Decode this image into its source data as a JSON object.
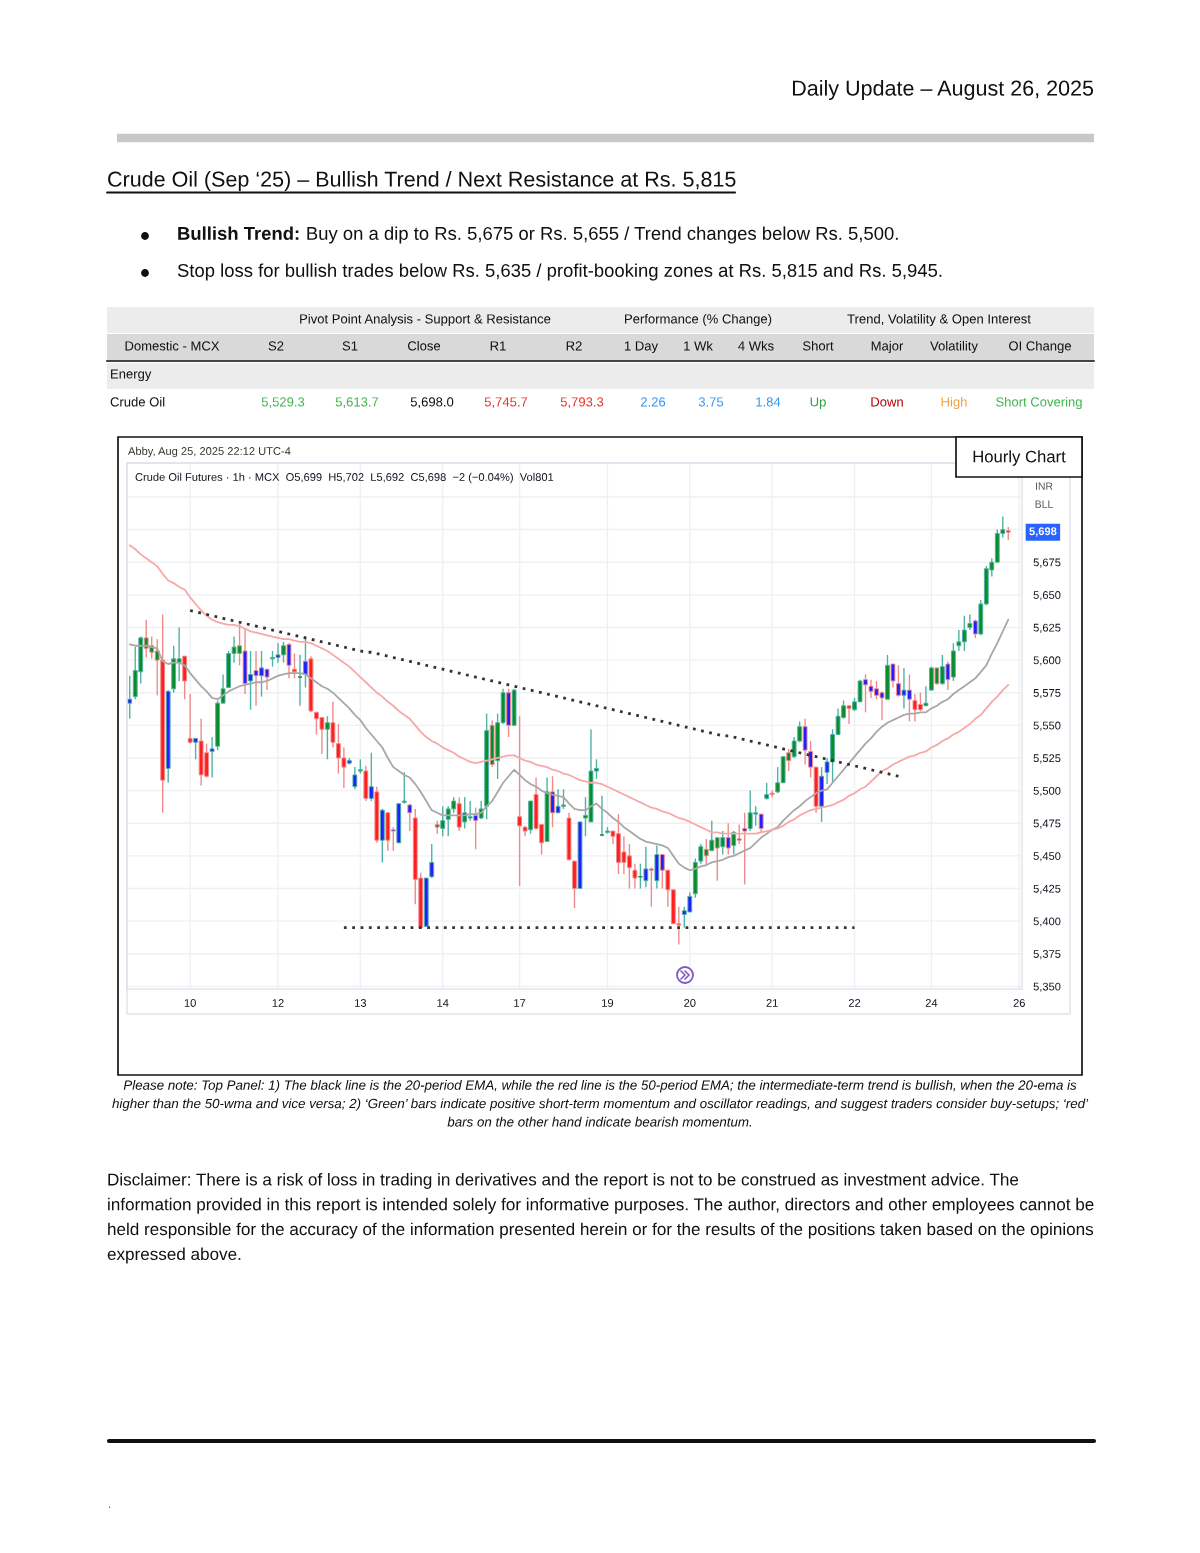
{
  "chart_data": [
    {
      "type": "other",
      "title": "Daily Update – August 26, 2025",
      "subtitle": "Crude Oil (Sep ‘25) – Bullish Trend / Next Resistance at Rs. 5,815",
      "annotations": [
        "Bullish Trend:",
        "Buy on a dip to Rs. 5,675 or Rs. 5,655 / Trend changes below Rs. 5,500.",
        "Stop loss for bullish trades below Rs. 5,635 / profit-booking zones at Rs. 5,815 and Rs. 5,945.",
        "Pivot Point Analysis - Support & Resistance",
        "Performance (% Change)",
        "Trend, Volatility & Open Interest",
        "Energy",
        "Crude Oil",
        "5,529.3",
        "5,613.7",
        "5,698.0",
        "5,745.7",
        "5,793.3",
        "2.26",
        "3.75",
        "1.84",
        "Up",
        "Down",
        "High",
        "Short Covering"
      ],
      "categories": [
        "Domestic - MCX",
        "S2",
        "S1",
        "Close",
        "R1",
        "R2",
        "1 Day",
        "1 Wk",
        "4 Wks",
        "Short",
        "Major",
        "Volatility",
        "OI Change"
      ]
    },
    {
      "type": "candlestick",
      "title": "Hourly Chart",
      "subtitle": "Crude Oil Futures · 1h · MCX  O5,699  H5,702  L5,692  C5,698  −2 (−0.04%)  Vol801",
      "annotations": [
        "Abby, Aug 25, 2025 22:12 UTC-4",
        "5,698",
        "INR",
        "BLL",
        "Please note: Top Panel: 1) The black line is the 20-period EMA, while the red line is the 50-period EMA; the intermediate-term trend is bullish, when the 20-ema is higher than the 50-wma and vice versa; 2) ‘Green’ bars indicate positive short-term momentum and oscillator readings, and suggest traders consider buy-setups; ‘red’ bars on the other hand indicate bearish momentum.",
        "Disclaimer: There is a risk of loss in trading in derivatives and the report is not to be construed as investment advice. The information provided in this report is intended solely for informative purposes. The author, directors and other employees cannot be held responsible for the accuracy of the information presented herein or for the results of the positions taken based on the opinions expressed above.",
        "."
      ],
      "categories": [
        null,
        null,
        null,
        null,
        null,
        null,
        null,
        null,
        null,
        null,
        null,
        "10",
        null,
        null,
        null,
        null,
        null,
        null,
        null,
        null,
        null,
        null,
        null,
        null,
        null,
        null,
        null,
        "12",
        null,
        null,
        null,
        null,
        null,
        null,
        null,
        null,
        null,
        null,
        null,
        null,
        null,
        null,
        "13",
        null,
        null,
        null,
        null,
        null,
        null,
        null,
        null,
        null,
        null,
        null,
        null,
        null,
        null,
        "14",
        null,
        null,
        null,
        null,
        null,
        null,
        null,
        null,
        null,
        null,
        null,
        null,
        null,
        "17",
        null,
        null,
        null,
        null,
        null,
        null,
        null,
        null,
        null,
        null,
        null,
        null,
        null,
        null,
        null,
        "19",
        null,
        null,
        null,
        null,
        null,
        null,
        null,
        null,
        null,
        null,
        null,
        null,
        null,
        null,
        "20",
        null,
        null,
        null,
        null,
        null,
        null,
        null,
        null,
        null,
        null,
        null,
        null,
        null,
        null,
        "21",
        null,
        null,
        null,
        null,
        null,
        null,
        null,
        null,
        null,
        null,
        null,
        null,
        null,
        null,
        "22",
        null,
        null,
        null,
        null,
        null,
        null,
        null,
        null,
        null,
        null,
        null,
        null,
        null,
        "24",
        null,
        null,
        null,
        null,
        null,
        null,
        null,
        null,
        null,
        null,
        null,
        null,
        null,
        null,
        null,
        "26"
      ],
      "ohlc": [
        [
          5567,
          5588,
          5555,
          5570
        ],
        [
          5572,
          5610,
          5570,
          5592
        ],
        [
          5591,
          5618,
          5582,
          5617
        ],
        [
          5617,
          5631,
          5602,
          5609
        ],
        [
          5611,
          5618,
          5601,
          5606
        ],
        [
          5607,
          5616,
          5573,
          5600
        ],
        [
          5600,
          5635,
          5483,
          5508
        ],
        [
          5517,
          5577,
          5506,
          5576
        ],
        [
          5578,
          5611,
          5575,
          5601
        ],
        [
          5598,
          5625,
          5584,
          5601
        ],
        [
          5603,
          5603,
          5570,
          5584
        ],
        [
          5540,
          5574,
          5536,
          5537
        ],
        [
          5537,
          5540,
          5524,
          5540
        ],
        [
          5538,
          5555,
          5504,
          5512
        ],
        [
          5529,
          5536,
          5510,
          5511
        ],
        [
          5530,
          5541,
          5510,
          5532
        ],
        [
          5534,
          5569,
          5531,
          5567
        ],
        [
          5567,
          5589,
          5567,
          5578
        ],
        [
          5579,
          5607,
          5579,
          5605
        ],
        [
          5605,
          5618,
          5598,
          5610
        ],
        [
          5611,
          5628,
          5596,
          5605
        ],
        [
          5607,
          5624,
          5574,
          5582
        ],
        [
          5584,
          5607,
          5562,
          5589
        ],
        [
          5592,
          5607,
          5565,
          5588
        ],
        [
          5588,
          5607,
          5572,
          5594
        ],
        [
          5593,
          5593,
          5577,
          5587
        ],
        [
          5601,
          5607,
          5595,
          5602
        ],
        [
          5602,
          5613,
          5598,
          5604
        ],
        [
          5604,
          5614,
          5598,
          5611
        ],
        [
          5612,
          5613,
          5586,
          5596
        ],
        [
          5593,
          5605,
          5586,
          5591
        ],
        [
          5587,
          5604,
          5565,
          5587
        ],
        [
          5589,
          5618,
          5579,
          5599
        ],
        [
          5601,
          5603,
          5560,
          5561
        ],
        [
          5560,
          5560,
          5543,
          5555
        ],
        [
          5556,
          5556,
          5528,
          5547
        ],
        [
          5547,
          5557,
          5524,
          5552
        ],
        [
          5552,
          5568,
          5533,
          5537
        ],
        [
          5536,
          5551,
          5513,
          5525
        ],
        [
          5525,
          5533,
          5502,
          5518
        ],
        [
          5521,
          5525,
          5520,
          5523
        ],
        [
          5503,
          5518,
          5501,
          5512
        ],
        [
          5515,
          5524,
          5513,
          5516
        ],
        [
          5515,
          5519,
          5492,
          5494
        ],
        [
          5494,
          5529,
          5492,
          5503
        ],
        [
          5499,
          5503,
          5460,
          5462
        ],
        [
          5462,
          5486,
          5445,
          5485
        ],
        [
          5483,
          5483,
          5454,
          5462
        ],
        [
          5470,
          5472,
          5454,
          5469
        ],
        [
          5460,
          5490,
          5460,
          5490
        ],
        [
          5491,
          5514,
          5490,
          5492
        ],
        [
          5489,
          5490,
          5469,
          5483
        ],
        [
          5479,
          5486,
          5413,
          5432
        ],
        [
          5433,
          5437,
          5395,
          5395
        ],
        [
          5396,
          5433,
          5396,
          5433
        ],
        [
          5434,
          5459,
          5433,
          5445
        ],
        [
          5474,
          5477,
          5467,
          5472
        ],
        [
          5471,
          5488,
          5465,
          5477
        ],
        [
          5478,
          5488,
          5465,
          5486
        ],
        [
          5486,
          5495,
          5483,
          5492
        ],
        [
          5490,
          5495,
          5469,
          5472
        ],
        [
          5476,
          5495,
          5471,
          5483
        ],
        [
          5479,
          5492,
          5477,
          5480
        ],
        [
          5481,
          5487,
          5455,
          5477
        ],
        [
          5479,
          5492,
          5478,
          5486
        ],
        [
          5488,
          5559,
          5478,
          5546
        ],
        [
          5550,
          5554,
          5518,
          5520
        ],
        [
          5523,
          5559,
          5509,
          5552
        ],
        [
          5552,
          5578,
          5551,
          5575
        ],
        [
          5575,
          5578,
          5541,
          5550
        ],
        [
          5550,
          5578,
          5550,
          5577
        ],
        [
          5480,
          5557,
          5427,
          5473
        ],
        [
          5472,
          5473,
          5465,
          5469
        ],
        [
          5470,
          5492,
          5467,
          5492
        ],
        [
          5497,
          5510,
          5470,
          5471
        ],
        [
          5474,
          5474,
          5451,
          5460
        ],
        [
          5461,
          5510,
          5461,
          5499
        ],
        [
          5499,
          5511,
          5472,
          5483
        ],
        [
          5483,
          5501,
          5483,
          5488
        ],
        [
          5488,
          5501,
          5486,
          5489
        ],
        [
          5479,
          5483,
          5447,
          5447
        ],
        [
          5446,
          5446,
          5410,
          5425
        ],
        [
          5425,
          5476,
          5425,
          5476
        ],
        [
          5479,
          5495,
          5465,
          5481
        ],
        [
          5476,
          5547,
          5476,
          5515
        ],
        [
          5515,
          5524,
          5509,
          5517
        ],
        [
          5466,
          5496,
          5465,
          5466
        ],
        [
          5468,
          5472,
          5467,
          5469
        ],
        [
          5469,
          5469,
          5459,
          5465
        ],
        [
          5467,
          5482,
          5436,
          5445
        ],
        [
          5453,
          5465,
          5436,
          5445
        ],
        [
          5450,
          5459,
          5425,
          5441
        ],
        [
          5439,
          5444,
          5425,
          5433
        ],
        [
          5434,
          5444,
          5425,
          5434
        ],
        [
          5431,
          5457,
          5426,
          5440
        ],
        [
          5440,
          5441,
          5411,
          5439
        ],
        [
          5431,
          5458,
          5425,
          5451
        ],
        [
          5451,
          5451,
          5425,
          5439
        ],
        [
          5439,
          5439,
          5411,
          5424
        ],
        [
          5424,
          5424,
          5398,
          5398
        ],
        [
          5398,
          5411,
          5382,
          5397
        ],
        [
          5405,
          5411,
          5395,
          5408
        ],
        [
          5407,
          5422,
          5407,
          5419
        ],
        [
          5421,
          5448,
          5418,
          5445
        ],
        [
          5446,
          5459,
          5444,
          5457
        ],
        [
          5455,
          5463,
          5442,
          5450
        ],
        [
          5454,
          5477,
          5454,
          5462
        ],
        [
          5464,
          5464,
          5431,
          5456
        ],
        [
          5457,
          5469,
          5451,
          5464
        ],
        [
          5464,
          5475,
          5451,
          5456
        ],
        [
          5458,
          5469,
          5451,
          5468
        ],
        [
          5463,
          5474,
          5459,
          5462
        ],
        [
          5471,
          5483,
          5428,
          5469
        ],
        [
          5471,
          5500,
          5469,
          5483
        ],
        [
          5482,
          5488,
          5473,
          5483
        ],
        [
          5482,
          5482,
          5468,
          5471
        ],
        [
          5494,
          5506,
          5493,
          5497
        ],
        [
          5498,
          5500,
          5495,
          5497
        ],
        [
          5499,
          5518,
          5498,
          5506
        ],
        [
          5506,
          5526,
          5506,
          5526
        ],
        [
          5529,
          5532,
          5515,
          5523
        ],
        [
          5526,
          5541,
          5525,
          5538
        ],
        [
          5538,
          5553,
          5537,
          5549
        ],
        [
          5549,
          5555,
          5520,
          5531
        ],
        [
          5530,
          5538,
          5510,
          5518
        ],
        [
          5518,
          5518,
          5483,
          5488
        ],
        [
          5488,
          5518,
          5476,
          5511
        ],
        [
          5514,
          5525,
          5505,
          5522
        ],
        [
          5522,
          5547,
          5506,
          5543
        ],
        [
          5543,
          5563,
          5543,
          5557
        ],
        [
          5556,
          5569,
          5555,
          5565
        ],
        [
          5565,
          5565,
          5551,
          5563
        ],
        [
          5562,
          5571,
          5561,
          5568
        ],
        [
          5568,
          5585,
          5568,
          5584
        ],
        [
          5585,
          5589,
          5560,
          5581
        ],
        [
          5580,
          5585,
          5571,
          5576
        ],
        [
          5578,
          5584,
          5570,
          5573
        ],
        [
          5575,
          5576,
          5554,
          5571
        ],
        [
          5570,
          5604,
          5570,
          5596
        ],
        [
          5597,
          5597,
          5579,
          5584
        ],
        [
          5582,
          5596,
          5572,
          5573
        ],
        [
          5573,
          5594,
          5563,
          5577
        ],
        [
          5577,
          5589,
          5553,
          5570
        ],
        [
          5569,
          5574,
          5553,
          5562
        ],
        [
          5566,
          5575,
          5561,
          5562
        ],
        [
          5565,
          5580,
          5565,
          5567
        ],
        [
          5577,
          5595,
          5577,
          5594
        ],
        [
          5594,
          5594,
          5581,
          5582
        ],
        [
          5582,
          5604,
          5581,
          5595
        ],
        [
          5597,
          5599,
          5577,
          5585
        ],
        [
          5587,
          5613,
          5584,
          5607
        ],
        [
          5611,
          5623,
          5607,
          5614
        ],
        [
          5614,
          5634,
          5607,
          5623
        ],
        [
          5625,
          5635,
          5623,
          5628
        ],
        [
          5630,
          5631,
          5617,
          5620
        ],
        [
          5620,
          5646,
          5619,
          5643
        ],
        [
          5643,
          5672,
          5642,
          5670
        ],
        [
          5669,
          5678,
          5664,
          5675
        ],
        [
          5675,
          5700,
          5675,
          5697
        ],
        [
          5697,
          5710,
          5694,
          5700
        ],
        [
          5699,
          5702,
          5692,
          5698
        ],
        null,
        null
      ],
      "colors": [
        "#1f1fff",
        "#0b8c2b",
        "#0b8c2b",
        "#0b8c2b",
        "#0b8c2b",
        "#0b8c2b",
        "#ff1f1f",
        "#1f1fff",
        "#0b8c2b",
        "#0b8c2b",
        "#ff1f1f",
        "#ff1f1f",
        "#1f1fff",
        "#ff1f1f",
        "#ff1f1f",
        "#1f1fff",
        "#0b8c2b",
        "#0b8c2b",
        "#0b8c2b",
        "#0b8c2b",
        "#0b8c2b",
        "#1f1fff",
        "#1f1fff",
        "#1f1fff",
        "#1f1fff",
        "#1f1fff",
        "#0b8c2b",
        "#1f1fff",
        "#0b8c2b",
        "#1f1fff",
        "#ff1f1f",
        "#0b8c2b",
        "#1f1fff",
        "#ff1f1f",
        "#ff1f1f",
        "#ff1f1f",
        "#0b8c2b",
        "#ff1f1f",
        "#ff1f1f",
        "#ff1f1f",
        "#1f1fff",
        "#1f1fff",
        "#0b8c2b",
        "#ff1f1f",
        "#1f1fff",
        "#ff1f1f",
        "#1f1fff",
        "#ff1f1f",
        "#1f1fff",
        "#1f1fff",
        "#0b8c2b",
        "#1f1fff",
        "#ff1f1f",
        "#ff1f1f",
        "#1f1fff",
        "#1f1fff",
        "#0b8c2b",
        "#0b8c2b",
        "#0b8c2b",
        "#0b8c2b",
        "#ff1f1f",
        "#0b8c2b",
        "#0b8c2b",
        "#1f1fff",
        "#0b8c2b",
        "#0b8c2b",
        "#0b8c2b",
        "#0b8c2b",
        "#0b8c2b",
        "#1f1fff",
        "#0b8c2b",
        "#ff1f1f",
        "#ff1f1f",
        "#0b8c2b",
        "#ff1f1f",
        "#ff1f1f",
        "#0b8c2b",
        "#1f1fff",
        "#1f1fff",
        "#0b8c2b",
        "#ff1f1f",
        "#ff1f1f",
        "#1f1fff",
        "#0b8c2b",
        "#0b8c2b",
        "#0b8c2b",
        "#0b8c2b",
        "#0b8c2b",
        "#ff1f1f",
        "#ff1f1f",
        "#ff1f1f",
        "#ff1f1f",
        "#ff1f1f",
        "#0b8c2b",
        "#1f1fff",
        "#ff1f1f",
        "#1f1fff",
        "#1f1fff",
        "#ff1f1f",
        "#ff1f1f",
        "#ff1f1f",
        "#1f1fff",
        "#1f1fff",
        "#0b8c2b",
        "#0b8c2b",
        "#0b8c2b",
        "#0b8c2b",
        "#0b8c2b",
        "#0b8c2b",
        "#1f1fff",
        "#0b8c2b",
        "#1f1fff",
        "#1f1fff",
        "#0b8c2b",
        "#0b8c2b",
        "#1f1fff",
        "#0b8c2b",
        "#ff1f1f",
        "#0b8c2b",
        "#0b8c2b",
        "#0b8c2b",
        "#0b8c2b",
        "#0b8c2b",
        "#1f1fff",
        "#1f1fff",
        "#ff1f1f",
        "#1f1fff",
        "#1f1fff",
        "#0b8c2b",
        "#0b8c2b",
        "#0b8c2b",
        "#ff1f1f",
        "#0b8c2b",
        "#0b8c2b",
        "#1f1fff",
        "#1f1fff",
        "#1f1fff",
        "#1f1fff",
        "#0b8c2b",
        "#1f1fff",
        "#1f1fff",
        "#1f1fff",
        "#1f1fff",
        "#ff1f1f",
        "#ff1f1f",
        "#0b8c2b",
        "#0b8c2b",
        "#0b8c2b",
        "#0b8c2b",
        "#1f1fff",
        "#0b8c2b",
        "#0b8c2b",
        "#0b8c2b",
        "#0b8c2b",
        "#1f1fff",
        "#0b8c2b",
        "#0b8c2b",
        "#0b8c2b",
        "#0b8c2b",
        "#0b8c2b",
        "#1f1fff",
        null,
        null
      ],
      "series": [
        {
          "type": "line",
          "color": "#a8a8a8",
          "line_style": "solid",
          "values": [
            5612,
            5611,
            5611,
            5611,
            5610,
            5609,
            5599,
            5597,
            5598,
            5598,
            5596,
            5590,
            5585,
            5580,
            5576,
            5571,
            5570,
            5573,
            5576,
            5578,
            5580,
            5581,
            5582,
            5583,
            5583,
            5584,
            5586,
            5588,
            5589,
            5590,
            5590,
            5590,
            5589,
            5586,
            5583,
            5580,
            5578,
            5575,
            5571,
            5567,
            5563,
            5558,
            5554,
            5548,
            5543,
            5538,
            5533,
            5525,
            5518,
            5515,
            5512,
            5510,
            5505,
            5499,
            5492,
            5485,
            5483,
            5481,
            5481,
            5481,
            5481,
            5481,
            5482,
            5482,
            5483,
            5488,
            5492,
            5499,
            5506,
            5511,
            5516,
            5512,
            5508,
            5505,
            5503,
            5500,
            5498,
            5497,
            5496,
            5495,
            5490,
            5486,
            5485,
            5485,
            5488,
            5490,
            5486,
            5483,
            5479,
            5476,
            5472,
            5469,
            5466,
            5463,
            5461,
            5460,
            5459,
            5458,
            5456,
            5450,
            5444,
            5441,
            5439,
            5440,
            5442,
            5443,
            5445,
            5446,
            5447,
            5449,
            5450,
            5452,
            5454,
            5456,
            5460,
            5464,
            5467,
            5470,
            5472,
            5477,
            5481,
            5485,
            5488,
            5492,
            5495,
            5498,
            5500,
            5501,
            5506,
            5511,
            5516,
            5521,
            5526,
            5531,
            5536,
            5540,
            5545,
            5549,
            5552,
            5554,
            5556,
            5558,
            5559,
            5559,
            5560,
            5560,
            5563,
            5565,
            5568,
            5570,
            5574,
            5577,
            5580,
            5583,
            5586,
            5591,
            5596,
            5605,
            5613,
            5622,
            5631,
            null,
            null
          ]
        },
        {
          "type": "line",
          "color": "#f7a9a9",
          "line_style": "solid",
          "values": [
            5688,
            5685,
            5681,
            5678,
            5675,
            5672,
            5666,
            5661,
            5659,
            5656,
            5654,
            5648,
            5643,
            5638,
            5634,
            5631,
            5629,
            5628,
            5627,
            5627,
            5626,
            5624,
            5622,
            5621,
            5620,
            5619,
            5618,
            5617,
            5616,
            5616,
            5615,
            5614,
            5614,
            5613,
            5611,
            5609,
            5607,
            5604,
            5601,
            5598,
            5595,
            5591,
            5587,
            5583,
            5579,
            5575,
            5572,
            5568,
            5565,
            5561,
            5558,
            5555,
            5550,
            5545,
            5541,
            5538,
            5536,
            5533,
            5531,
            5529,
            5526,
            5524,
            5522,
            5521,
            5522,
            5523,
            5524,
            5525,
            5526,
            5527,
            5527,
            5525,
            5523,
            5522,
            5520,
            5519,
            5518,
            5516,
            5515,
            5513,
            5512,
            5510,
            5508,
            5507,
            5506,
            5506,
            5505,
            5503,
            5501,
            5499,
            5497,
            5495,
            5493,
            5491,
            5489,
            5487,
            5486,
            5484,
            5483,
            5481,
            5479,
            5478,
            5476,
            5474,
            5472,
            5470,
            5468,
            5468,
            5467,
            5467,
            5467,
            5467,
            5467,
            5467,
            5467,
            5468,
            5469,
            5470,
            5471,
            5473,
            5476,
            5478,
            5481,
            5483,
            5485,
            5486,
            5487,
            5488,
            5489,
            5491,
            5493,
            5496,
            5498,
            5501,
            5503,
            5507,
            5511,
            5515,
            5517,
            5520,
            5522,
            5524,
            5526,
            5527,
            5529,
            5530,
            5533,
            5535,
            5538,
            5540,
            5543,
            5545,
            5548,
            5551,
            5555,
            5558,
            5563,
            5568,
            5572,
            5577,
            5581,
            null,
            null
          ]
        },
        {
          "type": "line",
          "color": "#333333",
          "line_style": "dotted",
          "values": [
            null,
            null,
            null,
            null,
            null,
            null,
            null,
            null,
            null,
            null,
            null,
            5638,
            5637,
            5636,
            5635,
            5634,
            5633,
            5632,
            5631,
            5630,
            5629,
            5628,
            5627,
            5626,
            5625,
            5624,
            5623,
            5622,
            5621,
            5620,
            5619,
            5618,
            5617,
            5616,
            5615,
            5614,
            5613,
            5612,
            5611,
            5610,
            5609,
            5608,
            5607,
            5606,
            5606,
            5605,
            5604,
            5603,
            5602,
            5601,
            5600,
            5599,
            5598,
            5597,
            5596,
            5595,
            5594,
            5593,
            5592,
            5591,
            5590,
            5589,
            5588,
            5587,
            5586,
            5585,
            5584,
            5583,
            5582,
            5581,
            5580,
            5579,
            5578,
            5577,
            5576,
            5575,
            5574,
            5573,
            5572,
            5571,
            5570,
            5569,
            5568,
            5567,
            5566,
            5565,
            5564,
            5563,
            5562,
            5561,
            5560,
            5559,
            5558,
            5557,
            5556,
            5555,
            5554,
            5553,
            5552,
            5551,
            5550,
            5549,
            5548,
            5547,
            5546,
            5545,
            5544,
            5543,
            5542,
            5542,
            5541,
            5540,
            5539,
            5538,
            5537,
            5536,
            5535,
            5534,
            5533,
            5532,
            5531,
            5530,
            5529,
            5528,
            5527,
            5526,
            5525,
            5524,
            5523,
            5522,
            5521,
            5520,
            5519,
            5518,
            5517,
            5516,
            5515,
            5514,
            5513,
            5512,
            5511,
            null,
            null,
            null,
            null,
            null,
            null,
            null,
            null,
            null,
            null,
            null,
            null,
            null,
            null,
            null,
            null,
            null,
            null,
            null,
            null,
            null,
            null
          ]
        },
        {
          "type": "line",
          "color": "#333333",
          "line_style": "dotted",
          "values": [
            null,
            null,
            null,
            null,
            null,
            null,
            null,
            null,
            null,
            null,
            null,
            null,
            null,
            null,
            null,
            null,
            null,
            null,
            null,
            null,
            null,
            null,
            null,
            null,
            null,
            null,
            null,
            null,
            null,
            null,
            null,
            null,
            null,
            null,
            null,
            null,
            null,
            null,
            null,
            5395,
            5395,
            5395,
            5395,
            5395,
            5395,
            5395,
            5395,
            5395,
            5395,
            5395,
            5395,
            5395,
            5395,
            5395,
            5395,
            5395,
            5395,
            5395,
            5395,
            5395,
            5395,
            5395,
            5395,
            5395,
            5395,
            5395,
            5395,
            5395,
            5395,
            5395,
            5395,
            5395,
            5395,
            5395,
            5395,
            5395,
            5395,
            5395,
            5395,
            5395,
            5395,
            5395,
            5395,
            5395,
            5395,
            5395,
            5395,
            5395,
            5395,
            5395,
            5395,
            5395,
            5395,
            5395,
            5395,
            5395,
            5395,
            5395,
            5395,
            5395,
            5395,
            5395,
            5395,
            5395,
            5395,
            5395,
            5395,
            5395,
            5395,
            5395,
            5395,
            5395,
            5395,
            5395,
            5395,
            5395,
            5395,
            5395,
            5395,
            5395,
            5395,
            5395,
            5395,
            5395,
            5395,
            5395,
            5395,
            5395,
            5395,
            5395,
            5395,
            5395,
            5395,
            null,
            null,
            null,
            null,
            null,
            null,
            null,
            null,
            null,
            null,
            null,
            null,
            null,
            null,
            null,
            null,
            null,
            null,
            null,
            null,
            null,
            null,
            null,
            null,
            null,
            null,
            null,
            null,
            null,
            null
          ]
        }
      ],
      "ylim": [
        5348,
        5751
      ],
      "yticks": [
        {
          "value": 5350,
          "label": "5,350"
        },
        {
          "value": 5375,
          "label": "5,375"
        },
        {
          "value": 5400,
          "label": "5,400"
        },
        {
          "value": 5425,
          "label": "5,425"
        },
        {
          "value": 5450,
          "label": "5,450"
        },
        {
          "value": 5475,
          "label": "5,475"
        },
        {
          "value": 5500,
          "label": "5,500"
        },
        {
          "value": 5525,
          "label": "5,525"
        },
        {
          "value": 5550,
          "label": "5,550"
        },
        {
          "value": 5575,
          "label": "5,575"
        },
        {
          "value": 5600,
          "label": "5,600"
        },
        {
          "value": 5625,
          "label": "5,625"
        },
        {
          "value": 5650,
          "label": "5,650"
        },
        {
          "value": 5675,
          "label": "5,675"
        },
        {
          "value": 5700,
          "label": null
        },
        {
          "value": 5725,
          "label": null
        }
      ],
      "grid": true
    }
  ]
}
